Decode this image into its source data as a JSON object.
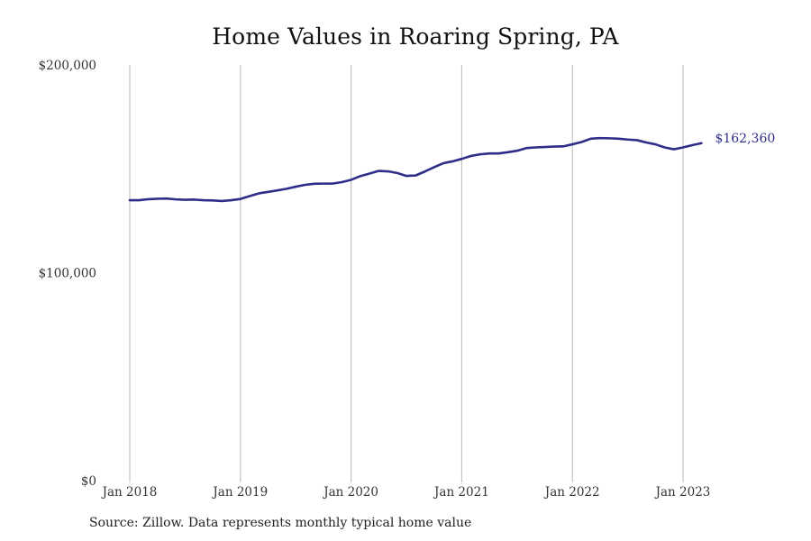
{
  "chart_data": {
    "type": "line",
    "title": "Home Values in Roaring Spring, PA",
    "xlabel": "",
    "ylabel": "",
    "ylim": [
      0,
      200000
    ],
    "y_ticks": [
      0,
      100000,
      200000
    ],
    "y_tick_labels": [
      "$0",
      "$100,000",
      "$200,000"
    ],
    "x_ticks": [
      "2018-01",
      "2019-01",
      "2020-01",
      "2021-01",
      "2022-01",
      "2023-01"
    ],
    "x_tick_labels": [
      "Jan 2018",
      "Jan 2019",
      "Jan 2020",
      "Jan 2021",
      "Jan 2022",
      "Jan 2023"
    ],
    "grid": "vertical",
    "line_color": "#2e2e8a",
    "end_label": "$162,360",
    "series": [
      {
        "x": [
          "2018-01",
          "2018-02",
          "2018-03",
          "2018-04",
          "2018-05",
          "2018-06",
          "2018-07",
          "2018-08",
          "2018-09",
          "2018-10",
          "2018-11",
          "2018-12",
          "2019-01",
          "2019-02",
          "2019-03",
          "2019-04",
          "2019-05",
          "2019-06",
          "2019-07",
          "2019-08",
          "2019-09",
          "2019-10",
          "2019-11",
          "2019-12",
          "2020-01",
          "2020-02",
          "2020-03",
          "2020-04",
          "2020-05",
          "2020-06",
          "2020-07",
          "2020-08",
          "2020-09",
          "2020-10",
          "2020-11",
          "2020-12",
          "2021-01",
          "2021-02",
          "2021-03",
          "2021-04",
          "2021-05",
          "2021-06",
          "2021-07",
          "2021-08",
          "2021-09",
          "2021-10",
          "2021-11",
          "2021-12",
          "2022-01",
          "2022-02",
          "2022-03",
          "2022-04",
          "2022-05",
          "2022-06",
          "2022-07",
          "2022-08",
          "2022-09",
          "2022-10",
          "2022-11",
          "2022-12",
          "2023-01",
          "2023-02",
          "2023-03"
        ],
        "values": [
          134900,
          134900,
          135400,
          135600,
          135700,
          135300,
          135100,
          135200,
          134900,
          134800,
          134500,
          134900,
          135500,
          136900,
          138200,
          138900,
          139600,
          140400,
          141400,
          142300,
          142800,
          142900,
          142900,
          143600,
          144700,
          146500,
          147700,
          149000,
          148800,
          148000,
          146600,
          146800,
          148700,
          150800,
          152700,
          153600,
          154800,
          156200,
          157000,
          157400,
          157400,
          158000,
          158700,
          160000,
          160300,
          160500,
          160700,
          160800,
          161800,
          162900,
          164500,
          164800,
          164700,
          164500,
          164100,
          163800,
          162700,
          161800,
          160300,
          159400,
          160300,
          161400,
          162360
        ]
      }
    ]
  },
  "source_note": "Source: Zillow. Data represents monthly typical home value"
}
